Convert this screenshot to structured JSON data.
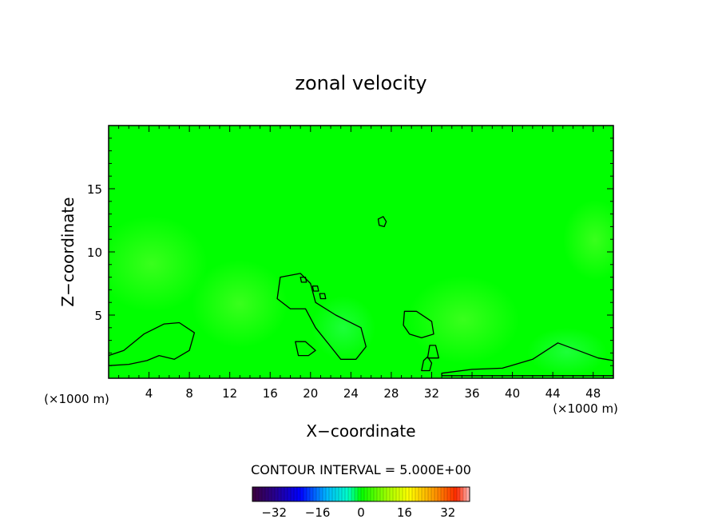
{
  "chart_data": {
    "type": "heatmap",
    "title": "zonal velocity",
    "xlabel": "X−coordinate",
    "ylabel": "Z−coordinate",
    "x_unit": "(×1000 m)",
    "xlim": [
      0,
      50
    ],
    "ylim": [
      0,
      20
    ],
    "x_ticks": [
      4,
      8,
      12,
      16,
      20,
      24,
      28,
      32,
      36,
      40,
      44,
      48
    ],
    "y_ticks": [
      5,
      10,
      15
    ],
    "contour_interval_label": "CONTOUR INTERVAL = 5.000E+00",
    "colorbar": {
      "range": [
        -40,
        40
      ],
      "ticks": [
        -32,
        -16,
        0,
        16,
        32
      ],
      "tick_labels": [
        "−32",
        "−16",
        "0",
        "16",
        "32"
      ]
    },
    "field_description": "Near-uniform weak zonal velocity (about 0) with small closed contours near the surface and a few isolated cells aloft.",
    "contours": [
      {
        "name": "low-left-lobe",
        "points": [
          [
            0,
            1.8
          ],
          [
            1.5,
            2.2
          ],
          [
            3.5,
            3.5
          ],
          [
            5.5,
            4.3
          ],
          [
            7,
            4.4
          ],
          [
            8.5,
            3.6
          ],
          [
            8,
            2.2
          ],
          [
            6.5,
            1.5
          ],
          [
            5,
            1.8
          ],
          [
            3.8,
            1.4
          ],
          [
            2,
            1.1
          ],
          [
            0,
            1.0
          ]
        ]
      },
      {
        "name": "central-hook",
        "points": [
          [
            17,
            8
          ],
          [
            19,
            8.3
          ],
          [
            20,
            7.5
          ],
          [
            20.5,
            6
          ],
          [
            22.5,
            5
          ],
          [
            25,
            4
          ],
          [
            25.5,
            2.5
          ],
          [
            24.5,
            1.5
          ],
          [
            23,
            1.5
          ],
          [
            22,
            2.5
          ],
          [
            20.5,
            4
          ],
          [
            19.5,
            5.5
          ],
          [
            18,
            5.5
          ],
          [
            16.7,
            6.3
          ]
        ]
      },
      {
        "name": "small-cell-19",
        "points": [
          [
            18.5,
            2.9
          ],
          [
            19.5,
            2.9
          ],
          [
            20.5,
            2.2
          ],
          [
            19.8,
            1.8
          ],
          [
            18.8,
            1.8
          ]
        ]
      },
      {
        "name": "cell-31",
        "points": [
          [
            29.3,
            5.3
          ],
          [
            30.5,
            5.3
          ],
          [
            32,
            4.5
          ],
          [
            32.2,
            3.5
          ],
          [
            31,
            3.2
          ],
          [
            29.8,
            3.5
          ],
          [
            29.2,
            4.2
          ]
        ]
      },
      {
        "name": "cell-27-aloft",
        "points": [
          [
            26.7,
            12.6
          ],
          [
            27.2,
            12.8
          ],
          [
            27.5,
            12.4
          ],
          [
            27.3,
            12.0
          ],
          [
            26.8,
            12.1
          ]
        ]
      },
      {
        "name": "cell-19-dot",
        "points": [
          [
            19,
            8
          ],
          [
            19.5,
            8
          ],
          [
            19.6,
            7.6
          ],
          [
            19.1,
            7.6
          ]
        ]
      },
      {
        "name": "cell-20-dot",
        "points": [
          [
            20.2,
            7.3
          ],
          [
            20.7,
            7.3
          ],
          [
            20.8,
            6.9
          ],
          [
            20.3,
            6.9
          ]
        ]
      },
      {
        "name": "cell-21-dot",
        "points": [
          [
            20.9,
            6.7
          ],
          [
            21.4,
            6.7
          ],
          [
            21.5,
            6.3
          ],
          [
            21,
            6.3
          ]
        ]
      },
      {
        "name": "cell-32",
        "points": [
          [
            31.8,
            2.6
          ],
          [
            32.4,
            2.6
          ],
          [
            32.7,
            1.6
          ],
          [
            31.6,
            1.6
          ]
        ]
      },
      {
        "name": "cell-31b",
        "points": [
          [
            31.2,
            1.4
          ],
          [
            31.6,
            1.7
          ],
          [
            32,
            1.2
          ],
          [
            31.8,
            0.6
          ],
          [
            31,
            0.6
          ]
        ]
      },
      {
        "name": "surface-band-right",
        "points": [
          [
            33,
            0.4
          ],
          [
            36,
            0.7
          ],
          [
            39,
            0.8
          ],
          [
            42,
            1.5
          ],
          [
            44.5,
            2.8
          ],
          [
            46.5,
            2.2
          ],
          [
            48.5,
            1.6
          ],
          [
            50,
            1.4
          ],
          [
            50,
            0.2
          ],
          [
            33,
            0.2
          ]
        ]
      }
    ]
  },
  "colors": {
    "field": "#00ff00",
    "frame": "#000000",
    "contour": "#000000"
  }
}
